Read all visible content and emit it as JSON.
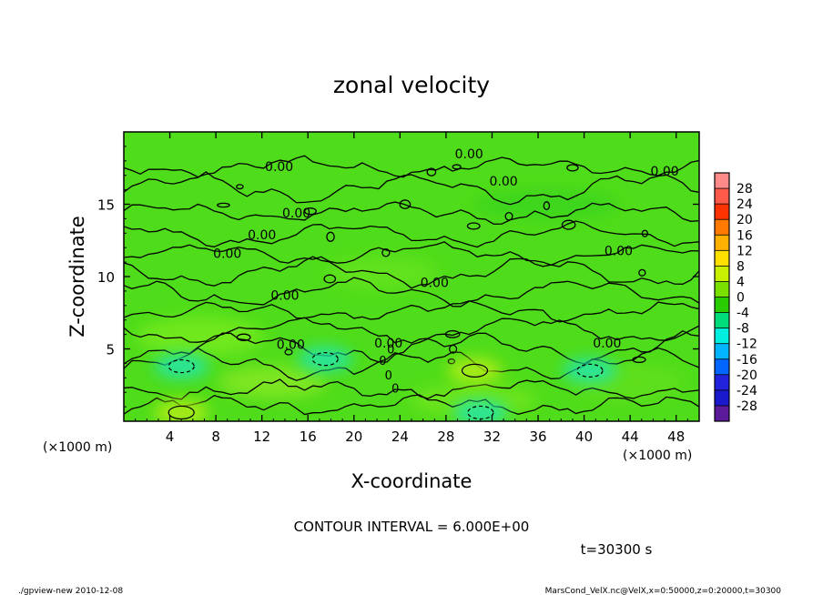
{
  "chart_data": {
    "type": "heatmap",
    "title": "zonal velocity",
    "xlabel": "X-coordinate",
    "ylabel": "Z-coordinate",
    "x_unit_left": "(×1000 m)",
    "x_unit_right": "(×1000 m)",
    "xlim": [
      0,
      50
    ],
    "ylim": [
      0,
      20
    ],
    "x_ticks": [
      4,
      8,
      12,
      16,
      20,
      24,
      28,
      32,
      36,
      40,
      44,
      48
    ],
    "x_tick_labels": [
      "4",
      "8",
      "12",
      "16",
      "20",
      "24",
      "28",
      "32",
      "36",
      "40",
      "44",
      "48"
    ],
    "y_ticks": [
      5,
      10,
      15
    ],
    "y_tick_labels": [
      "5",
      "10",
      "15"
    ],
    "contour_label": "0.00",
    "contour_interval_text": "CONTOUR INTERVAL = 6.000E+00",
    "time_text": "t=30300 s",
    "footer_left": "./gpview-new   2010-12-08",
    "footer_right": "MarsCond_VelX.nc@VelX,x=0:50000,z=0:20000,t=30300",
    "colorbar": {
      "labels": [
        "28",
        "24",
        "20",
        "16",
        "12",
        "8",
        "4",
        "0",
        "-4",
        "-8",
        "-12",
        "-16",
        "-20",
        "-24",
        "-28"
      ],
      "colors": [
        "#ff8a8a",
        "#ff5a4a",
        "#ff3300",
        "#ff7a00",
        "#ffb000",
        "#ffe000",
        "#c8ee00",
        "#7ae000",
        "#28cc00",
        "#00dd7a",
        "#00eedd",
        "#00b4ff",
        "#0066ff",
        "#2222dd",
        "#1a1acc",
        "#5a1a9a"
      ]
    },
    "features": [
      {
        "type": "negative",
        "x": 5,
        "z": 3.8,
        "value": -6
      },
      {
        "type": "negative",
        "x": 17.5,
        "z": 4.3,
        "value": -6
      },
      {
        "type": "negative",
        "x": 40.5,
        "z": 3.5,
        "value": -6
      },
      {
        "type": "negative",
        "x": 31,
        "z": 0.6,
        "value": -6
      },
      {
        "type": "positive",
        "x": 5,
        "z": 0.6,
        "value": 6
      },
      {
        "type": "positive",
        "x": 30.5,
        "z": 3.5,
        "value": 6
      }
    ]
  }
}
